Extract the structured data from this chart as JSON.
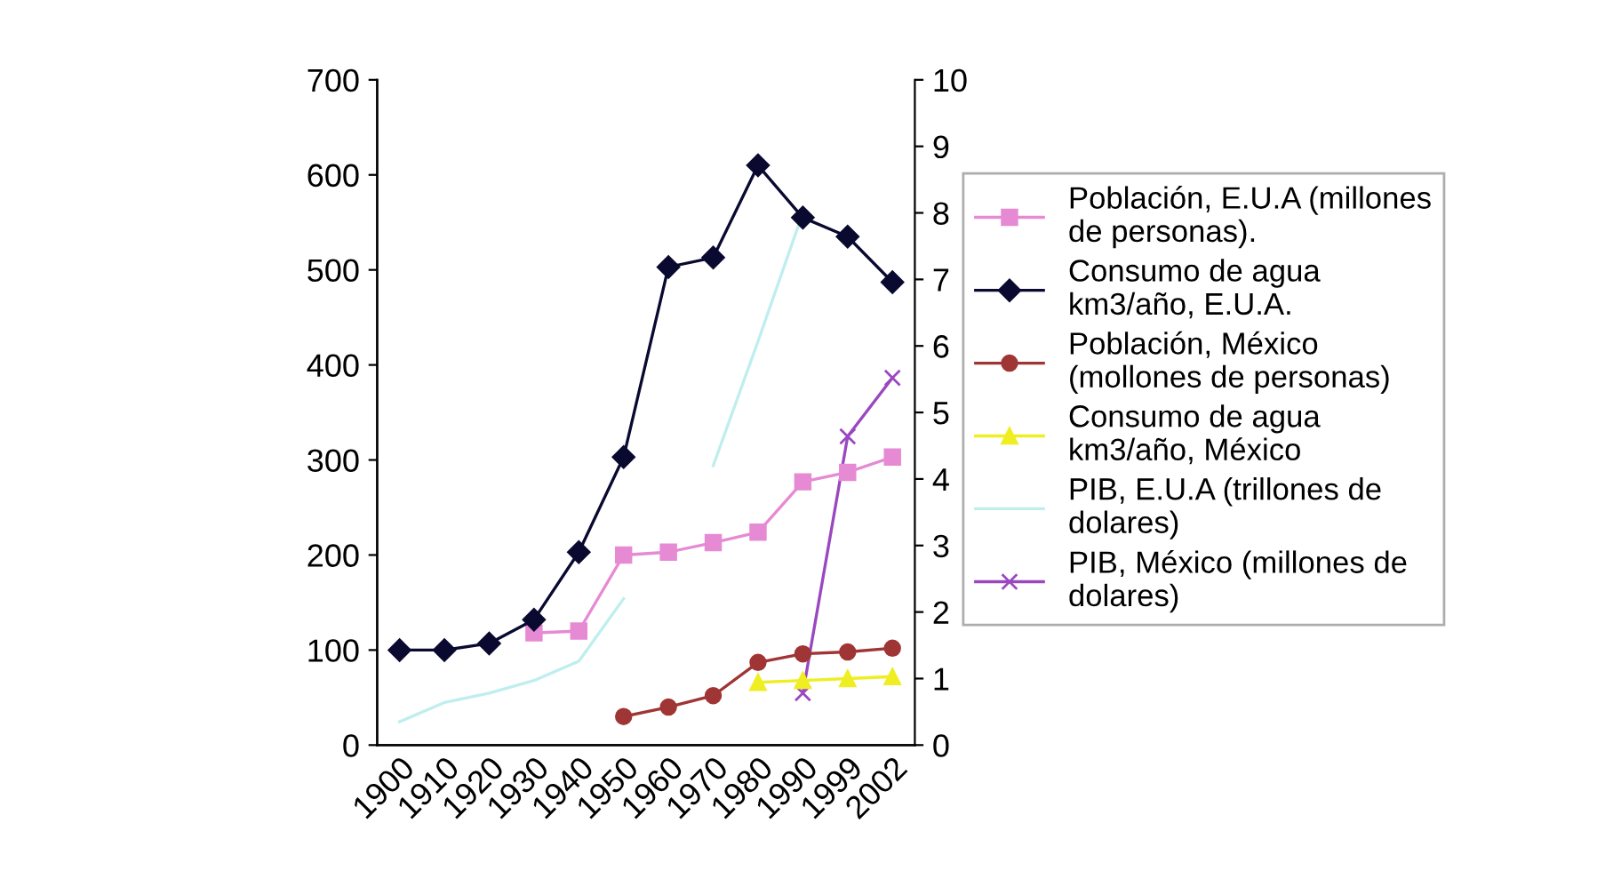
{
  "chart_data": {
    "type": "line",
    "categories": [
      "1900",
      "1910",
      "1920",
      "1930",
      "1940",
      "1950",
      "1960",
      "1970",
      "1980",
      "1990",
      "1999",
      "2002"
    ],
    "series": [
      {
        "name": "Población, E.U.A (millones de personas).",
        "color": "#e68ad4",
        "marker": "square",
        "values": [
          null,
          null,
          null,
          118,
          120,
          200,
          203,
          213,
          224,
          277,
          287,
          303
        ]
      },
      {
        "name": "Consumo de agua km3/año, E.U.A.",
        "color": "#0a0a30",
        "marker": "diamond",
        "values": [
          100,
          100,
          107,
          132,
          203,
          303,
          503,
          513,
          610,
          555,
          535,
          487
        ]
      },
      {
        "name": "Población, México (mollones de personas)",
        "color": "#a03535",
        "marker": "circle",
        "values": [
          null,
          null,
          null,
          null,
          null,
          30,
          40,
          52,
          87,
          96,
          98,
          102
        ]
      },
      {
        "name": "Consumo de agua km3/año, México",
        "color": "#eeee22",
        "marker": "triangle",
        "values": [
          null,
          null,
          null,
          null,
          null,
          null,
          null,
          null,
          66,
          68,
          70,
          72
        ]
      },
      {
        "name": "PIB, E.U.A (trillones de dolares)",
        "color": "#bfeeee",
        "marker": "none",
        "axis": "y2",
        "values": [
          0.35,
          0.64,
          0.78,
          0.97,
          1.26,
          2.2,
          null,
          4.2,
          6.07,
          8.0,
          null,
          null
        ]
      },
      {
        "name": "PIB, México (millones de dolares)",
        "color": "#9a48c0",
        "marker": "cross",
        "axis": "y2",
        "values": [
          null,
          null,
          null,
          null,
          null,
          null,
          null,
          null,
          null,
          0.78,
          4.64,
          5.52
        ]
      }
    ],
    "ylim": [
      0,
      700
    ],
    "yticks": [
      0,
      100,
      200,
      300,
      400,
      500,
      600,
      700
    ],
    "y2lim": [
      0,
      10
    ],
    "y2ticks": [
      0,
      1,
      2,
      3,
      4,
      5,
      6,
      7,
      8,
      9,
      10
    ],
    "grid": false,
    "legend": "right",
    "line_style": "solid"
  }
}
